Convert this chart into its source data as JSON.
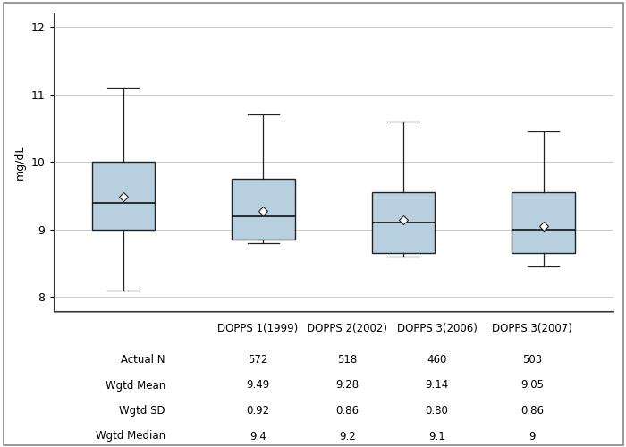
{
  "ylabel": "mg/dL",
  "ylim": [
    7.8,
    12.2
  ],
  "yticks": [
    8,
    9,
    10,
    11,
    12
  ],
  "groups": [
    "DOPPS 1(1999)",
    "DOPPS 2(2002)",
    "DOPPS 3(2006)",
    "DOPPS 3(2007)"
  ],
  "box_data": [
    {
      "whislo": 8.1,
      "q1": 9.0,
      "med": 9.4,
      "q3": 10.0,
      "whishi": 11.1,
      "mean": 9.49
    },
    {
      "whislo": 8.8,
      "q1": 8.85,
      "med": 9.2,
      "q3": 9.75,
      "whishi": 10.7,
      "mean": 9.28
    },
    {
      "whislo": 8.6,
      "q1": 8.65,
      "med": 9.1,
      "q3": 9.55,
      "whishi": 10.6,
      "mean": 9.14
    },
    {
      "whislo": 8.45,
      "q1": 8.65,
      "med": 9.0,
      "q3": 9.55,
      "whishi": 10.45,
      "mean": 9.05
    }
  ],
  "box_color": "#b8cfe0",
  "box_edge_color": "#222222",
  "median_color": "#111111",
  "whisker_color": "#222222",
  "cap_color": "#222222",
  "grid_color": "#cccccc",
  "background_color": "#ffffff",
  "table_rows": [
    "Actual N",
    "Wgtd Mean",
    "Wgtd SD",
    "Wgtd Median"
  ],
  "table_data": [
    [
      "572",
      "518",
      "460",
      "503"
    ],
    [
      "9.49",
      "9.28",
      "9.14",
      "9.05"
    ],
    [
      "0.92",
      "0.86",
      "0.80",
      "0.86"
    ],
    [
      "9.4",
      "9.2",
      "9.1",
      "9"
    ]
  ],
  "border_color": "#888888"
}
